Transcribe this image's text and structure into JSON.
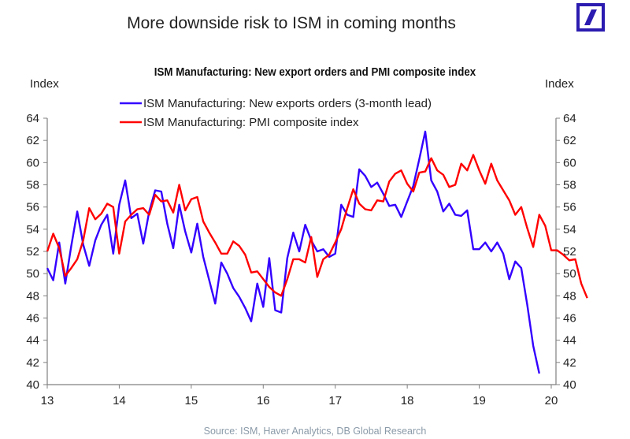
{
  "header": {
    "title": "More downside risk to ISM in coming months",
    "logo_name": "deutsche-bank-logo",
    "brand_color": "#1a0dab"
  },
  "source": "Source: ISM, Haver Analytics, DB Global Research",
  "chart_data": {
    "type": "line",
    "title": "ISM Manufacturing: New export orders and PMI composite index",
    "ylabel_left": "Index",
    "ylabel_right": "Index",
    "xlabel": "",
    "ylim": [
      40,
      64
    ],
    "xlim": [
      13,
      20
    ],
    "yticks": [
      "40",
      "42",
      "44",
      "46",
      "48",
      "50",
      "52",
      "54",
      "56",
      "58",
      "60",
      "62",
      "64"
    ],
    "xticks": [
      "13",
      "14",
      "15",
      "16",
      "17",
      "18",
      "19",
      "20"
    ],
    "legend_position": "top-left",
    "series": [
      {
        "name": "ISM Manufacturing: New exports orders (3-month lead)",
        "color": "#3300ff",
        "start": 13.0,
        "step_months": 1,
        "values": [
          50.5,
          49.4,
          52.8,
          49.1,
          52.5,
          55.6,
          52.6,
          50.7,
          53.0,
          54.4,
          55.3,
          51.8,
          56.2,
          58.4,
          55.0,
          55.4,
          52.7,
          55.6,
          57.5,
          57.4,
          54.5,
          52.3,
          56.2,
          53.8,
          51.9,
          54.5,
          51.5,
          49.4,
          47.3,
          51.0,
          50.0,
          48.7,
          47.9,
          46.9,
          45.7,
          49.1,
          47.0,
          51.4,
          46.7,
          46.5,
          51.4,
          53.7,
          52.0,
          54.4,
          53.0,
          52.0,
          52.2,
          51.5,
          51.8,
          56.2,
          55.3,
          55.1,
          59.4,
          58.8,
          57.8,
          58.2,
          57.2,
          56.1,
          56.2,
          55.1,
          56.5,
          57.9,
          60.3,
          62.8,
          58.4,
          57.4,
          55.6,
          56.3,
          55.3,
          55.2,
          55.7,
          52.2,
          52.2,
          52.8,
          52.0,
          52.8,
          51.8,
          49.5,
          51.1,
          50.5,
          47.2,
          43.5,
          41.0
        ]
      },
      {
        "name": "ISM Manufacturing: PMI composite index",
        "color": "#ff0000",
        "start": 13.0,
        "step_months": 1,
        "values": [
          52.0,
          53.6,
          52.3,
          49.8,
          50.5,
          51.3,
          53.0,
          55.9,
          54.9,
          55.4,
          56.3,
          56.0,
          51.8,
          54.7,
          55.3,
          55.8,
          55.9,
          55.3,
          57.1,
          56.5,
          56.6,
          55.5,
          58.0,
          55.7,
          56.7,
          56.9,
          54.7,
          53.7,
          52.8,
          51.8,
          51.8,
          52.9,
          52.5,
          51.7,
          50.1,
          50.2,
          49.5,
          48.8,
          48.3,
          48.0,
          49.5,
          51.3,
          51.3,
          51.0,
          53.3,
          49.7,
          51.3,
          51.7,
          52.8,
          54.0,
          55.9,
          57.6,
          56.3,
          55.8,
          55.7,
          56.6,
          56.5,
          58.3,
          59.0,
          59.3,
          58.1,
          57.4,
          59.1,
          59.2,
          60.4,
          59.3,
          58.9,
          57.8,
          58.0,
          59.9,
          59.3,
          60.7,
          59.3,
          58.1,
          59.9,
          58.4,
          57.5,
          56.6,
          55.3,
          56.0,
          54.1,
          52.4,
          55.3,
          54.3,
          52.1,
          52.1,
          51.7,
          51.2,
          51.3,
          49.1,
          47.8
        ]
      }
    ]
  }
}
